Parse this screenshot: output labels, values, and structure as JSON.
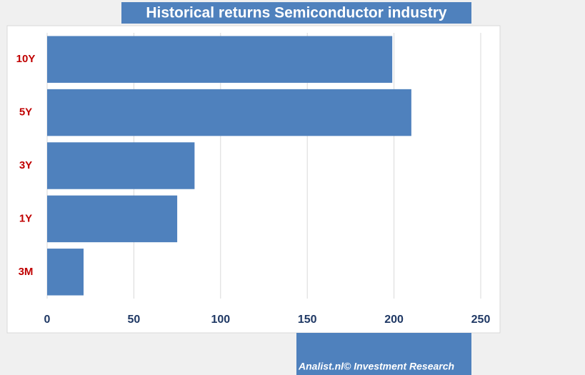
{
  "chart_data": {
    "type": "barh",
    "title": "Historical returns Semiconductor industry",
    "categories": [
      "10Y",
      "5Y",
      "3Y",
      "1Y",
      "3M"
    ],
    "values": [
      199,
      210,
      85,
      75,
      21
    ],
    "color": "#4f81bd",
    "xlim": [
      0,
      250
    ],
    "xticks": [
      0,
      50,
      100,
      150,
      200,
      250
    ],
    "grid": true,
    "footer": "Analist.nl© Investment Research"
  }
}
